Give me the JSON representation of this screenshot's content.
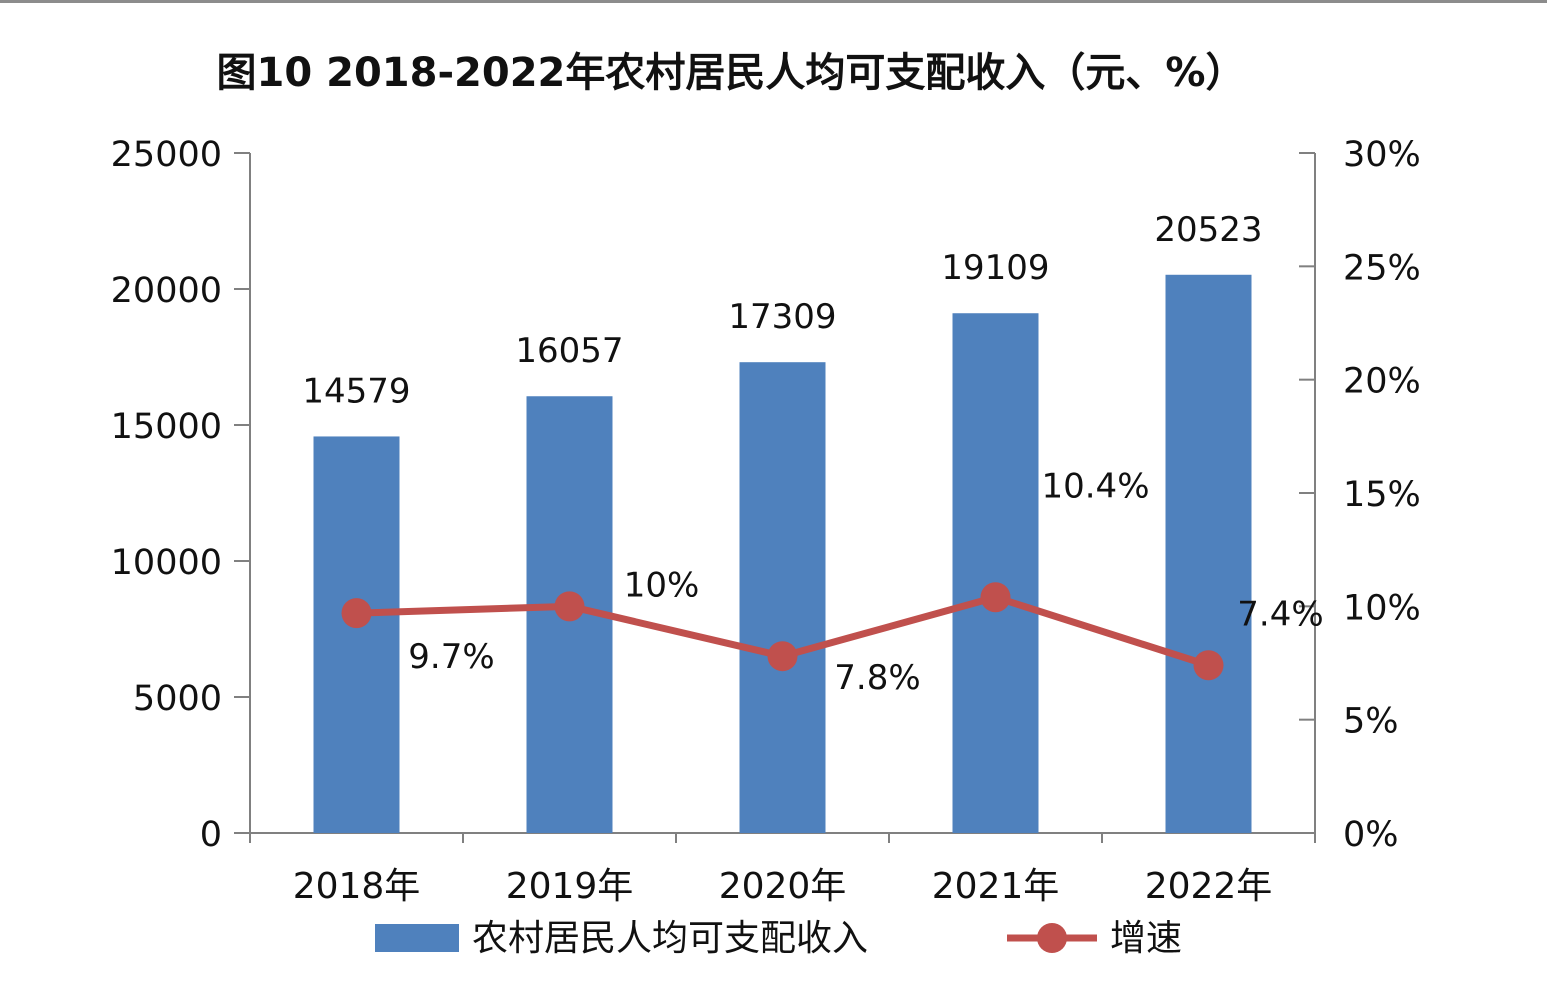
{
  "title": "图10   2018-2022年农村居民人均可支配收入（元、%）",
  "colors": {
    "bar": "#4F81BD",
    "line": "#C0504D",
    "axis": "#808080",
    "text": "#111111"
  },
  "chart_data": {
    "type": "bar",
    "title": "图10   2018-2022年农村居民人均可支配收入（元、%）",
    "categories": [
      "2018年",
      "2019年",
      "2020年",
      "2021年",
      "2022年"
    ],
    "series": [
      {
        "name": "农村居民人均可支配收入",
        "type": "bar",
        "axis": "left",
        "values": [
          14579,
          16057,
          17309,
          19109,
          20523
        ],
        "labels": [
          "14579",
          "16057",
          "17309",
          "19109",
          "20523"
        ]
      },
      {
        "name": "增速",
        "type": "line",
        "axis": "right",
        "values": [
          9.7,
          10,
          7.8,
          10.4,
          7.4
        ],
        "labels": [
          "9.7%",
          "10%",
          "7.8%",
          "10.4%",
          "7.4%"
        ]
      }
    ],
    "y_left": {
      "min": 0,
      "max": 25000,
      "ticks": [
        0,
        5000,
        10000,
        15000,
        20000,
        25000
      ],
      "tick_labels": [
        "0",
        "5000",
        "10000",
        "15000",
        "20000",
        "25000"
      ]
    },
    "y_right": {
      "min": 0,
      "max": 30,
      "ticks": [
        0,
        5,
        10,
        15,
        20,
        25,
        30
      ],
      "tick_labels": [
        "0%",
        "5%",
        "10%",
        "15%",
        "20%",
        "25%",
        "30%"
      ]
    },
    "grid": false,
    "legend": "bottom"
  }
}
